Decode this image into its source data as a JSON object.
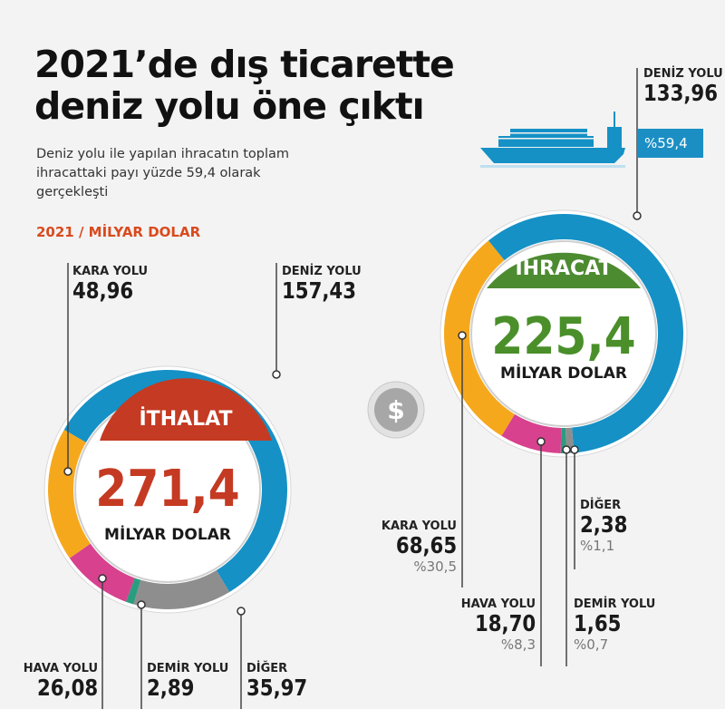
{
  "title_line1": "2021’de dış ticarette",
  "title_line2": "deniz yolu öne çıktı",
  "subtitle": "Deniz yolu ile yapılan ihracatın toplam ihracattaki payı yüzde 59,4 olarak gerçekleşti",
  "unit": "2021 / MİLYAR DOLAR",
  "colors": {
    "deniz": "#1591c6",
    "kara": "#f6a81d",
    "hava": "#d8418e",
    "demir": "#2a9d7f",
    "diger": "#8e8e8e",
    "ithalat": "#c43a22",
    "ihracat": "#4d8b31"
  },
  "chart_data": [
    {
      "type": "pie",
      "title": "İTHALAT",
      "total": "271,4",
      "unit": "MİLYAR DOLAR",
      "labels": [
        "DENİZ YOLU",
        "DİĞER",
        "DEMİR YOLU",
        "HAVA YOLU",
        "KARA YOLU"
      ],
      "values": [
        157.43,
        35.97,
        2.89,
        26.08,
        48.96
      ],
      "value_labels": [
        "157,43",
        "35,97",
        "2,89",
        "26,08",
        "48,96"
      ]
    },
    {
      "type": "pie",
      "title": "İHRACAT",
      "total": "225,4",
      "unit": "MİLYAR DOLAR",
      "labels": [
        "DENİZ YOLU",
        "DİĞER",
        "DEMİR YOLU",
        "HAVA YOLU",
        "KARA YOLU"
      ],
      "values": [
        133.96,
        2.38,
        1.65,
        18.7,
        68.65
      ],
      "value_labels": [
        "133,96",
        "2,38",
        "1,65",
        "18,70",
        "68,65"
      ],
      "percent_labels": [
        "%59,4",
        "%1,1",
        "%0,7",
        "%8,3",
        "%30,5"
      ]
    }
  ]
}
